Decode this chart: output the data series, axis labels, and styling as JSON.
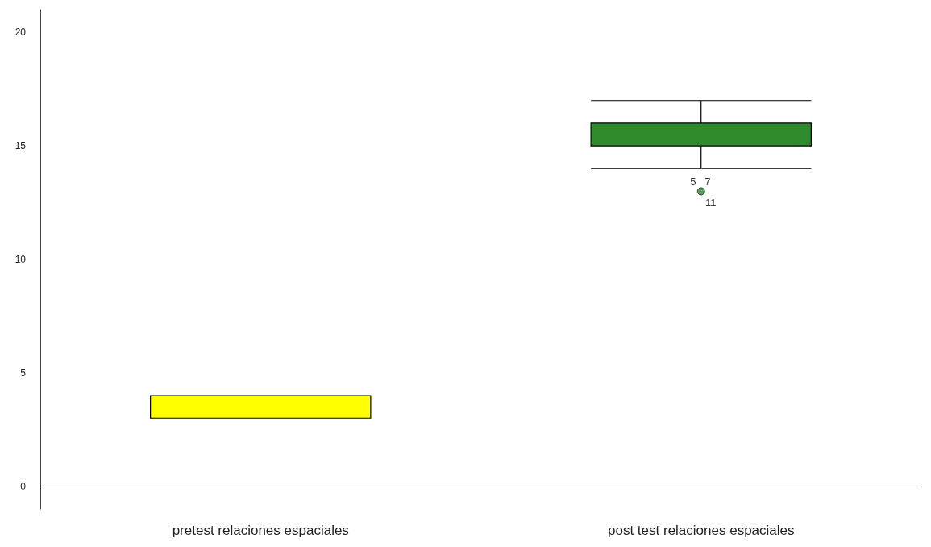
{
  "chart_data": {
    "type": "box",
    "categories": [
      "pretest relaciones espaciales",
      "post test relaciones espaciales"
    ],
    "boxes": [
      {
        "low": 3,
        "q1": 3,
        "median": 4,
        "q3": 4,
        "high": 4
      },
      {
        "low": 14,
        "q1": 15,
        "median": 16,
        "q3": 16,
        "high": 17,
        "outliers": [
          13
        ]
      }
    ],
    "colors": [
      "#ffff00",
      "#2e8b2e"
    ],
    "ylim": [
      -1,
      21
    ],
    "yticks": [
      0,
      5,
      10,
      15,
      20
    ],
    "annotations": [
      "5",
      "7",
      "11"
    ]
  }
}
